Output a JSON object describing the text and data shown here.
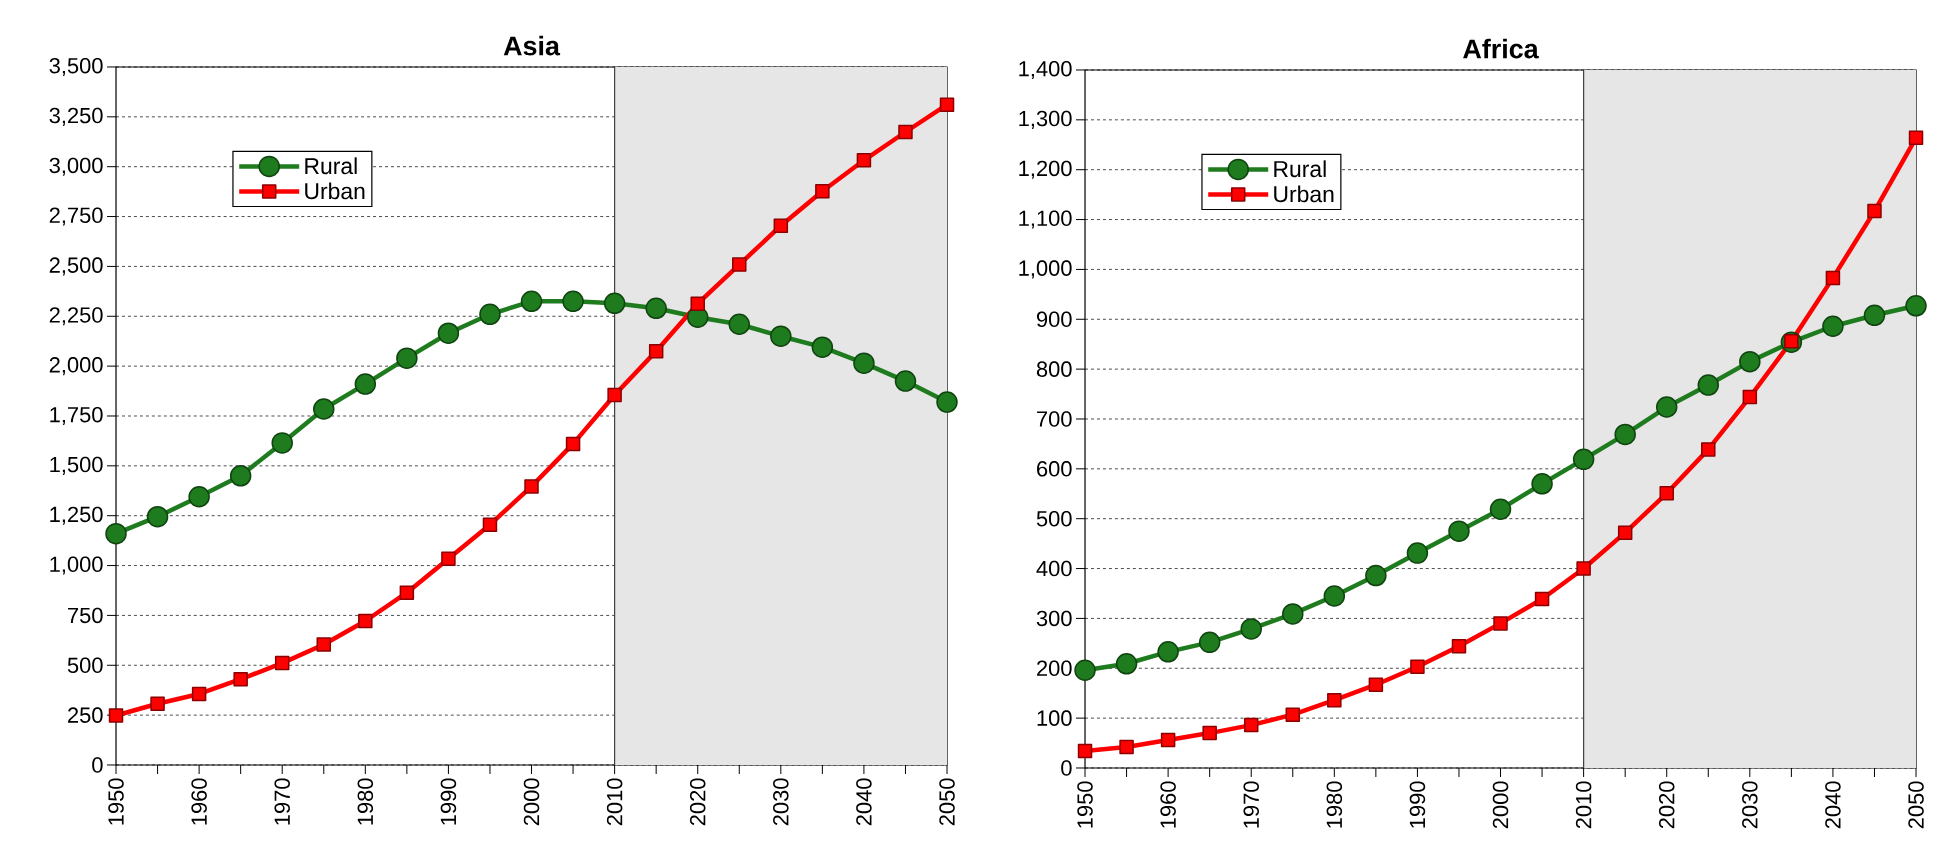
{
  "chart_data": [
    {
      "type": "line",
      "title": "Asia",
      "x": [
        1950,
        1955,
        1960,
        1965,
        1970,
        1975,
        1980,
        1985,
        1990,
        1995,
        2000,
        2005,
        2010,
        2015,
        2020,
        2025,
        2030,
        2035,
        2040,
        2045,
        2050
      ],
      "series": [
        {
          "name": "Rural",
          "color": "#1e7b1e",
          "marker": "circle",
          "values": [
            1160,
            1245,
            1345,
            1450,
            1615,
            1785,
            1910,
            2040,
            2165,
            2260,
            2325,
            2325,
            2315,
            2290,
            2245,
            2210,
            2150,
            2095,
            2015,
            1925,
            1820
          ]
        },
        {
          "name": "Urban",
          "color": "#ff0000",
          "marker": "square",
          "values": [
            248,
            307,
            356,
            430,
            511,
            604,
            722,
            864,
            1034,
            1205,
            1397,
            1610,
            1855,
            2075,
            2313,
            2509,
            2704,
            2877,
            3032,
            3174,
            3311
          ]
        }
      ],
      "xlim": [
        1950,
        2050
      ],
      "xticks": [
        1950,
        {
          "value": 1955,
          "label": null
        },
        1960,
        {
          "value": 1965,
          "label": null
        },
        1970,
        {
          "value": 1975,
          "label": null
        },
        1980,
        {
          "value": 1985,
          "label": null
        },
        1990,
        {
          "value": 1995,
          "label": null
        },
        2000,
        {
          "value": 2005,
          "label": null
        },
        2010,
        {
          "value": 2015,
          "label": null
        },
        2020,
        {
          "value": 2025,
          "label": null
        },
        2030,
        {
          "value": 2035,
          "label": null
        },
        2040,
        {
          "value": 2045,
          "label": null
        },
        2050
      ],
      "ylim": [
        0,
        3500
      ],
      "yticks": [
        0,
        250,
        500,
        750,
        {
          "value": 1000,
          "label": "1,000"
        },
        {
          "value": 1250,
          "label": "1,250"
        },
        {
          "value": 1500,
          "label": "1,500"
        },
        {
          "value": 1750,
          "label": "1,750"
        },
        {
          "value": 2000,
          "label": "2,000"
        },
        {
          "value": 2250,
          "label": "2,250"
        },
        {
          "value": 2500,
          "label": "2,500"
        },
        {
          "value": 2750,
          "label": "2,750"
        },
        {
          "value": 3000,
          "label": "3,000"
        },
        {
          "value": 3250,
          "label": "3,250"
        },
        {
          "value": 3500,
          "label": "3,500"
        }
      ],
      "ref_lines": [
        {
          "axis": "x",
          "value": 2010,
          "color": "#404040",
          "line_style": "solid"
        }
      ],
      "bands": [
        {
          "axis": "x",
          "from": 2010,
          "to": 2050,
          "color": "#e6e6e6"
        }
      ],
      "grid": "y",
      "legend": "top left",
      "line_style": "solid"
    },
    {
      "type": "line",
      "title": "Africa",
      "x": [
        1950,
        1955,
        1960,
        1965,
        1970,
        1975,
        1980,
        1985,
        1990,
        1995,
        2000,
        2005,
        2010,
        2015,
        2020,
        2025,
        2030,
        2035,
        2040,
        2045,
        2050
      ],
      "series": [
        {
          "name": "Rural",
          "color": "#1e7b1e",
          "marker": "circle",
          "values": [
            196,
            209,
            233,
            252,
            279,
            309,
            345,
            386,
            431,
            475,
            519,
            570,
            619,
            669,
            724,
            768,
            815,
            854,
            886,
            908,
            927
          ]
        },
        {
          "name": "Urban",
          "color": "#ff0000",
          "marker": "square",
          "values": [
            34,
            42,
            56,
            70,
            86,
            107,
            136,
            167,
            203,
            244,
            290,
            339,
            400,
            472,
            551,
            639,
            744,
            856,
            983,
            1117,
            1264
          ]
        }
      ],
      "xlim": [
        1950,
        2050
      ],
      "xticks": [
        1950,
        {
          "value": 1955,
          "label": null
        },
        1960,
        {
          "value": 1965,
          "label": null
        },
        1970,
        {
          "value": 1975,
          "label": null
        },
        1980,
        {
          "value": 1985,
          "label": null
        },
        1990,
        {
          "value": 1995,
          "label": null
        },
        2000,
        {
          "value": 2005,
          "label": null
        },
        2010,
        {
          "value": 2015,
          "label": null
        },
        2020,
        {
          "value": 2025,
          "label": null
        },
        2030,
        {
          "value": 2035,
          "label": null
        },
        2040,
        {
          "value": 2045,
          "label": null
        },
        2050
      ],
      "ylim": [
        0,
        1400
      ],
      "yticks": [
        0,
        100,
        200,
        300,
        400,
        500,
        600,
        700,
        800,
        900,
        {
          "value": 1000,
          "label": "1,000"
        },
        {
          "value": 1100,
          "label": "1,100"
        },
        {
          "value": 1200,
          "label": "1,200"
        },
        {
          "value": 1300,
          "label": "1,300"
        },
        {
          "value": 1400,
          "label": "1,400"
        }
      ],
      "ref_lines": [
        {
          "axis": "x",
          "value": 2010,
          "color": "#404040",
          "line_style": "solid"
        }
      ],
      "bands": [
        {
          "axis": "x",
          "from": 2010,
          "to": 2050,
          "color": "#e6e6e6"
        }
      ],
      "grid": "y",
      "legend": "top left",
      "line_style": "solid"
    }
  ]
}
